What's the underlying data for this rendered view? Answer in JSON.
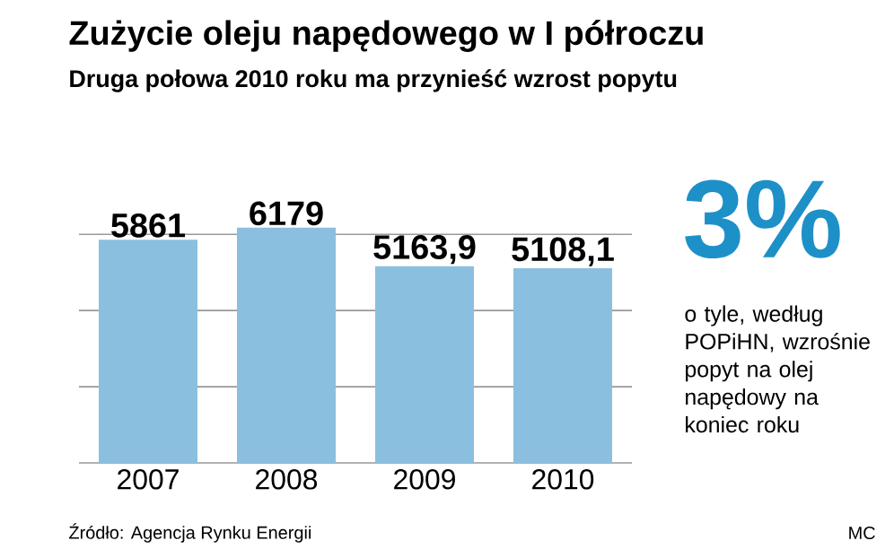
{
  "chart_data": {
    "type": "bar",
    "title": "Zużycie oleju napędowego w I półroczu",
    "subtitle": "Druga połowa 2010 roku ma przynieść wzrost popytu",
    "categories": [
      "2007",
      "2008",
      "2009",
      "2010"
    ],
    "values": [
      5861,
      6179,
      5163.9,
      5108.1
    ],
    "value_labels": [
      "5861",
      "6179",
      "5163,9",
      "5108,1"
    ],
    "color": "#8bbfdf",
    "yticks": [
      {
        "value": 0,
        "label": null
      },
      {
        "value": 2000,
        "label": null
      },
      {
        "value": 4000,
        "label": null
      },
      {
        "value": 6000,
        "label": null
      }
    ],
    "grid": "y",
    "tick_labels": "x",
    "annotations": [
      "3%",
      "o tyle, według POPiHN, wzrośnie popyt na olej napędowy na koniec roku",
      "Źródło: Agencja Rynku Energii",
      "MC"
    ]
  }
}
